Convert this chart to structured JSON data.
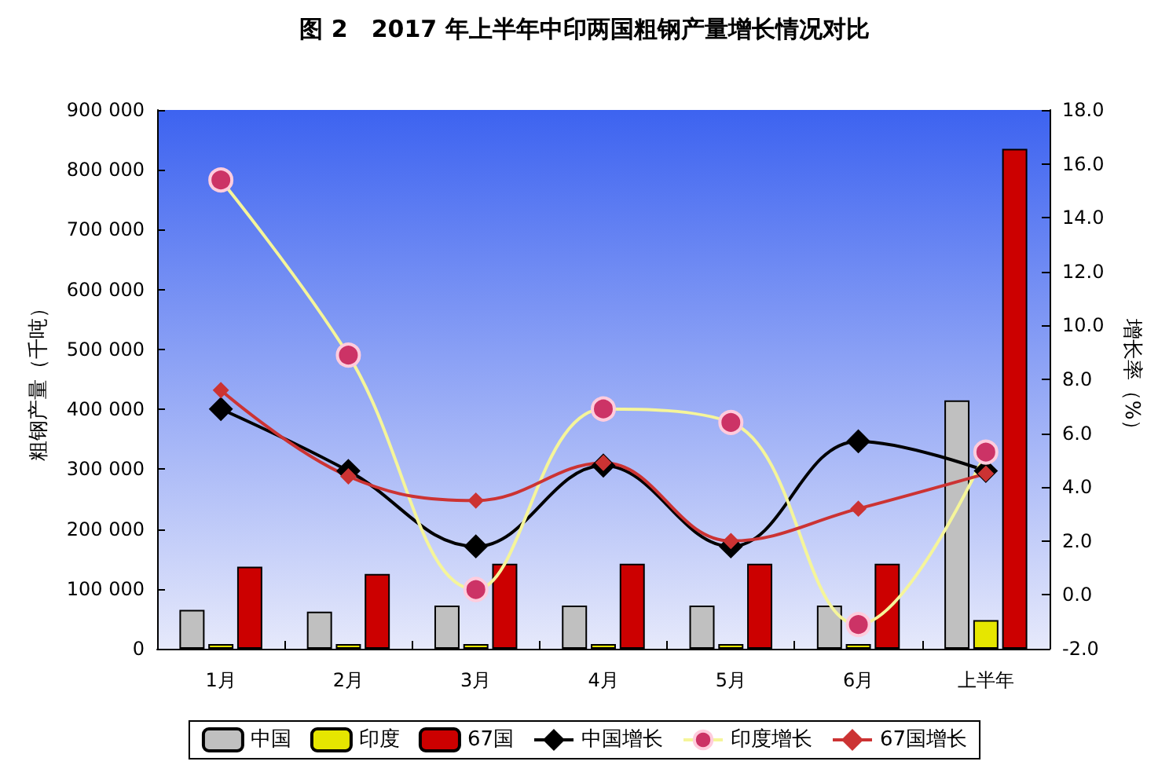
{
  "chart_data": {
    "type": "bar",
    "title": "图 2　2017 年上半年中印两国粗钢产量增长情况对比",
    "ylabel": "粗钢产量（千吨）",
    "y2label": "增长率（%）",
    "categories": [
      "1月",
      "2月",
      "3月",
      "4月",
      "5月",
      "6月",
      "上半年"
    ],
    "series": [
      {
        "name": "中国",
        "color": "#c0c0c0",
        "values": [
          65000,
          62000,
          72000,
          72000,
          72000,
          72000,
          415000
        ]
      },
      {
        "name": "印度",
        "color": "#e6e600",
        "values": [
          8000,
          8000,
          8000,
          8000,
          8000,
          8000,
          48000
        ]
      },
      {
        "name": "67国",
        "color": "#cc0000",
        "values": [
          137000,
          125000,
          142000,
          142000,
          142000,
          142000,
          835000
        ]
      },
      {
        "name": "中国增长",
        "type": "line",
        "axis": "y2",
        "color": "#000000",
        "marker": "diamond",
        "values": [
          6.9,
          4.6,
          1.8,
          4.8,
          1.8,
          5.7,
          4.6
        ]
      },
      {
        "name": "印度增长",
        "type": "line",
        "axis": "y2",
        "color": "#f5f59a",
        "marker": "circle",
        "values": [
          15.4,
          8.9,
          0.2,
          6.9,
          6.4,
          -1.1,
          5.3
        ]
      },
      {
        "name": "67国增长",
        "type": "line",
        "axis": "y2",
        "color": "#cc3333",
        "marker": "diamond",
        "values": [
          7.6,
          4.4,
          3.5,
          4.9,
          2.0,
          3.2,
          4.5
        ]
      }
    ],
    "ylim": [
      0,
      900000
    ],
    "yticks": [
      {
        "value": 0,
        "label": "0"
      },
      {
        "value": 100000,
        "label": "100 000"
      },
      {
        "value": 200000,
        "label": "200 000"
      },
      {
        "value": 300000,
        "label": "300 000"
      },
      {
        "value": 400000,
        "label": "400 000"
      },
      {
        "value": 500000,
        "label": "500 000"
      },
      {
        "value": 600000,
        "label": "600 000"
      },
      {
        "value": 700000,
        "label": "700 000"
      },
      {
        "value": 800000,
        "label": "800 000"
      },
      {
        "value": 900000,
        "label": "900 000"
      }
    ],
    "y2lim": [
      -2,
      18
    ],
    "y2ticks": [
      {
        "value": -2,
        "label": "-2.0"
      },
      {
        "value": 0,
        "label": "0.0"
      },
      {
        "value": 2,
        "label": "2.0"
      },
      {
        "value": 4,
        "label": "4.0"
      },
      {
        "value": 6,
        "label": "6.0"
      },
      {
        "value": 8,
        "label": "8.0"
      },
      {
        "value": 10,
        "label": "10.0"
      },
      {
        "value": 12,
        "label": "12.0"
      },
      {
        "value": 14,
        "label": "14.0"
      },
      {
        "value": 16,
        "label": "16.0"
      },
      {
        "value": 18,
        "label": "18.0"
      }
    ],
    "grid": false,
    "legend": "bottom"
  }
}
